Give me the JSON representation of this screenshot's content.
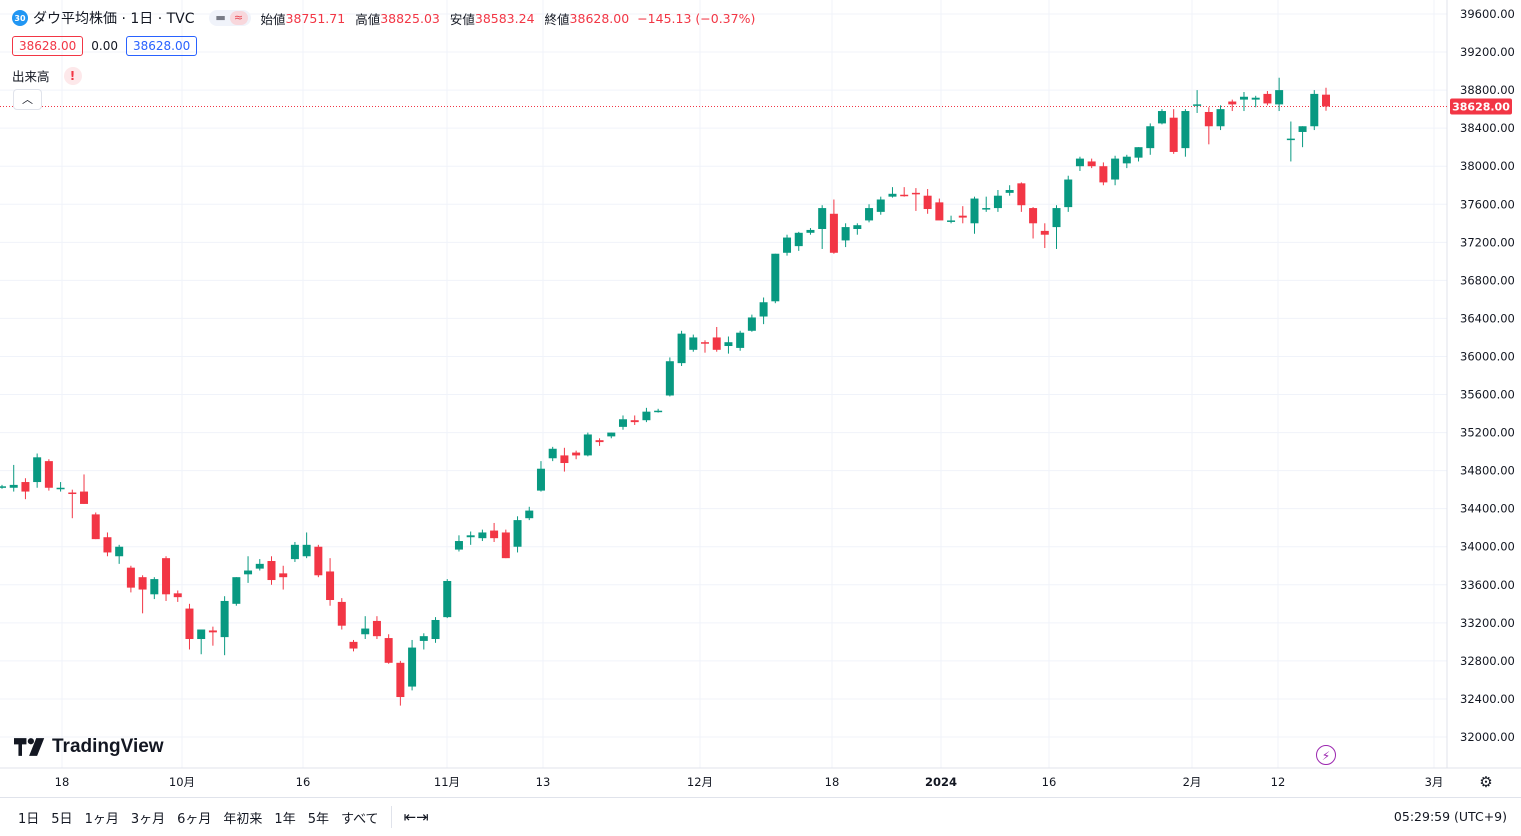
{
  "header": {
    "badge": "30",
    "title": "ダウ平均株価 · 1日 · TVC",
    "ohlc": [
      {
        "label": "始値",
        "value": "38751.71"
      },
      {
        "label": "高値",
        "value": "38825.03"
      },
      {
        "label": "安値",
        "value": "38583.24"
      },
      {
        "label": "終値",
        "value": "38628.00"
      }
    ],
    "change": "−145.13 (−0.37%)"
  },
  "quote": {
    "sell": "38628.00",
    "spread": "0.00",
    "buy": "38628.00"
  },
  "volume": {
    "label": "出来高",
    "warning": "!"
  },
  "collapse_icon": "chevron-up-icon",
  "logo_text": "TradingView",
  "price_axis": {
    "labels": [
      "39600.00",
      "39200.00",
      "38800.00",
      "38400.00",
      "38000.00",
      "37600.00",
      "37200.00",
      "36800.00",
      "36400.00",
      "36000.00",
      "35600.00",
      "35200.00",
      "34800.00",
      "34400.00",
      "34000.00",
      "33600.00",
      "33200.00",
      "32800.00",
      "32400.00",
      "32000.00"
    ],
    "current_price": "38628.00"
  },
  "time_axis": {
    "labels": [
      "18",
      "10月",
      "16",
      "11月",
      "13",
      "12月",
      "18",
      "2024",
      "16",
      "2月",
      "12",
      "3月"
    ]
  },
  "colors": {
    "up": "#089981",
    "down": "#f23645",
    "grid": "#f0f3fa",
    "current": "#f23645"
  },
  "bottom_bar": {
    "ranges": [
      "1日",
      "5日",
      "1ヶ月",
      "3ヶ月",
      "6ヶ月",
      "年初来",
      "1年",
      "5年",
      "すべて"
    ],
    "clock": "05:29:59 (UTC+9)"
  },
  "chart_data": {
    "type": "candlestick",
    "ylim": [
      31800,
      39700
    ],
    "current": 38628,
    "candles": [
      {
        "o": 34630,
        "h": 34650,
        "l": 34610,
        "c": 34635
      },
      {
        "o": 34620,
        "h": 34860,
        "l": 34580,
        "c": 34650
      },
      {
        "o": 34680,
        "h": 34720,
        "l": 34500,
        "c": 34580
      },
      {
        "o": 34680,
        "h": 34980,
        "l": 34620,
        "c": 34940
      },
      {
        "o": 34900,
        "h": 34920,
        "l": 34590,
        "c": 34620
      },
      {
        "o": 34620,
        "h": 34680,
        "l": 34580,
        "c": 34620
      },
      {
        "o": 34570,
        "h": 34600,
        "l": 34300,
        "c": 34560
      },
      {
        "o": 34580,
        "h": 34760,
        "l": 34450,
        "c": 34450
      },
      {
        "o": 34340,
        "h": 34360,
        "l": 34080,
        "c": 34080
      },
      {
        "o": 34100,
        "h": 34150,
        "l": 33900,
        "c": 33940
      },
      {
        "o": 33900,
        "h": 34020,
        "l": 33820,
        "c": 34000
      },
      {
        "o": 33780,
        "h": 33800,
        "l": 33520,
        "c": 33570
      },
      {
        "o": 33680,
        "h": 33700,
        "l": 33300,
        "c": 33550
      },
      {
        "o": 33500,
        "h": 33680,
        "l": 33450,
        "c": 33660
      },
      {
        "o": 33880,
        "h": 33900,
        "l": 33430,
        "c": 33500
      },
      {
        "o": 33510,
        "h": 33540,
        "l": 33420,
        "c": 33470
      },
      {
        "o": 33350,
        "h": 33400,
        "l": 32920,
        "c": 33030
      },
      {
        "o": 33030,
        "h": 33130,
        "l": 32870,
        "c": 33130
      },
      {
        "o": 33120,
        "h": 33160,
        "l": 32960,
        "c": 33100
      },
      {
        "o": 33050,
        "h": 33480,
        "l": 32860,
        "c": 33430
      },
      {
        "o": 33400,
        "h": 33680,
        "l": 33380,
        "c": 33680
      },
      {
        "o": 33710,
        "h": 33900,
        "l": 33620,
        "c": 33750
      },
      {
        "o": 33770,
        "h": 33870,
        "l": 33750,
        "c": 33820
      },
      {
        "o": 33850,
        "h": 33900,
        "l": 33600,
        "c": 33650
      },
      {
        "o": 33720,
        "h": 33800,
        "l": 33550,
        "c": 33680
      },
      {
        "o": 33870,
        "h": 34050,
        "l": 33840,
        "c": 34020
      },
      {
        "o": 33900,
        "h": 34150,
        "l": 33880,
        "c": 34020
      },
      {
        "o": 34000,
        "h": 34020,
        "l": 33680,
        "c": 33700
      },
      {
        "o": 33740,
        "h": 33880,
        "l": 33380,
        "c": 33440
      },
      {
        "o": 33420,
        "h": 33460,
        "l": 33130,
        "c": 33170
      },
      {
        "o": 33000,
        "h": 33020,
        "l": 32900,
        "c": 32930
      },
      {
        "o": 33080,
        "h": 33270,
        "l": 33030,
        "c": 33140
      },
      {
        "o": 33220,
        "h": 33270,
        "l": 33030,
        "c": 33060
      },
      {
        "o": 33040,
        "h": 33080,
        "l": 32770,
        "c": 32780
      },
      {
        "o": 32780,
        "h": 32800,
        "l": 32330,
        "c": 32420
      },
      {
        "o": 32530,
        "h": 33020,
        "l": 32490,
        "c": 32940
      },
      {
        "o": 33010,
        "h": 33090,
        "l": 32920,
        "c": 33060
      },
      {
        "o": 33030,
        "h": 33260,
        "l": 32990,
        "c": 33230
      },
      {
        "o": 33260,
        "h": 33660,
        "l": 33250,
        "c": 33640
      },
      {
        "o": 33970,
        "h": 34120,
        "l": 33950,
        "c": 34060
      },
      {
        "o": 34100,
        "h": 34160,
        "l": 34020,
        "c": 34120
      },
      {
        "o": 34090,
        "h": 34180,
        "l": 34060,
        "c": 34150
      },
      {
        "o": 34170,
        "h": 34250,
        "l": 34050,
        "c": 34090
      },
      {
        "o": 34150,
        "h": 34180,
        "l": 33880,
        "c": 33880
      },
      {
        "o": 34000,
        "h": 34320,
        "l": 33940,
        "c": 34280
      },
      {
        "o": 34300,
        "h": 34420,
        "l": 34280,
        "c": 34380
      },
      {
        "o": 34590,
        "h": 34900,
        "l": 34580,
        "c": 34820
      },
      {
        "o": 34930,
        "h": 35050,
        "l": 34900,
        "c": 35030
      },
      {
        "o": 34960,
        "h": 35040,
        "l": 34790,
        "c": 34880
      },
      {
        "o": 34990,
        "h": 35010,
        "l": 34920,
        "c": 34960
      },
      {
        "o": 34960,
        "h": 35200,
        "l": 34950,
        "c": 35180
      },
      {
        "o": 35120,
        "h": 35140,
        "l": 35060,
        "c": 35100
      },
      {
        "o": 35160,
        "h": 35200,
        "l": 35140,
        "c": 35200
      },
      {
        "o": 35260,
        "h": 35380,
        "l": 35230,
        "c": 35340
      },
      {
        "o": 35330,
        "h": 35380,
        "l": 35280,
        "c": 35310
      },
      {
        "o": 35330,
        "h": 35460,
        "l": 35310,
        "c": 35420
      },
      {
        "o": 35430,
        "h": 35450,
        "l": 35410,
        "c": 35430
      },
      {
        "o": 35590,
        "h": 35990,
        "l": 35580,
        "c": 35950
      },
      {
        "o": 35930,
        "h": 36270,
        "l": 35900,
        "c": 36240
      },
      {
        "o": 36070,
        "h": 36230,
        "l": 36050,
        "c": 36200
      },
      {
        "o": 36150,
        "h": 36170,
        "l": 36040,
        "c": 36140
      },
      {
        "o": 36200,
        "h": 36310,
        "l": 36050,
        "c": 36070
      },
      {
        "o": 36110,
        "h": 36210,
        "l": 36030,
        "c": 36150
      },
      {
        "o": 36090,
        "h": 36270,
        "l": 36060,
        "c": 36250
      },
      {
        "o": 36270,
        "h": 36440,
        "l": 36260,
        "c": 36410
      },
      {
        "o": 36420,
        "h": 36620,
        "l": 36340,
        "c": 36570
      },
      {
        "o": 36580,
        "h": 37080,
        "l": 36560,
        "c": 37080
      },
      {
        "o": 37090,
        "h": 37280,
        "l": 37060,
        "c": 37250
      },
      {
        "o": 37160,
        "h": 37310,
        "l": 37110,
        "c": 37300
      },
      {
        "o": 37300,
        "h": 37350,
        "l": 37280,
        "c": 37330
      },
      {
        "o": 37340,
        "h": 37590,
        "l": 37130,
        "c": 37560
      },
      {
        "o": 37500,
        "h": 37650,
        "l": 37080,
        "c": 37090
      },
      {
        "o": 37220,
        "h": 37400,
        "l": 37150,
        "c": 37360
      },
      {
        "o": 37340,
        "h": 37400,
        "l": 37280,
        "c": 37380
      },
      {
        "o": 37430,
        "h": 37600,
        "l": 37410,
        "c": 37560
      },
      {
        "o": 37520,
        "h": 37680,
        "l": 37490,
        "c": 37650
      },
      {
        "o": 37680,
        "h": 37780,
        "l": 37670,
        "c": 37710
      },
      {
        "o": 37700,
        "h": 37780,
        "l": 37680,
        "c": 37690
      },
      {
        "o": 37720,
        "h": 37770,
        "l": 37530,
        "c": 37710
      },
      {
        "o": 37690,
        "h": 37760,
        "l": 37500,
        "c": 37550
      },
      {
        "o": 37620,
        "h": 37660,
        "l": 37450,
        "c": 37430
      },
      {
        "o": 37430,
        "h": 37480,
        "l": 37400,
        "c": 37430
      },
      {
        "o": 37480,
        "h": 37580,
        "l": 37400,
        "c": 37460
      },
      {
        "o": 37400,
        "h": 37680,
        "l": 37290,
        "c": 37660
      },
      {
        "o": 37560,
        "h": 37680,
        "l": 37520,
        "c": 37560
      },
      {
        "o": 37560,
        "h": 37750,
        "l": 37520,
        "c": 37690
      },
      {
        "o": 37720,
        "h": 37800,
        "l": 37690,
        "c": 37750
      },
      {
        "o": 37820,
        "h": 37830,
        "l": 37520,
        "c": 37590
      },
      {
        "o": 37560,
        "h": 37570,
        "l": 37240,
        "c": 37400
      },
      {
        "o": 37320,
        "h": 37400,
        "l": 37140,
        "c": 37280
      },
      {
        "o": 37360,
        "h": 37590,
        "l": 37130,
        "c": 37560
      },
      {
        "o": 37570,
        "h": 37900,
        "l": 37520,
        "c": 37860
      },
      {
        "o": 38000,
        "h": 38100,
        "l": 37950,
        "c": 38080
      },
      {
        "o": 38050,
        "h": 38080,
        "l": 37980,
        "c": 38000
      },
      {
        "o": 38000,
        "h": 38040,
        "l": 37800,
        "c": 37830
      },
      {
        "o": 37860,
        "h": 38110,
        "l": 37800,
        "c": 38080
      },
      {
        "o": 38030,
        "h": 38120,
        "l": 37980,
        "c": 38100
      },
      {
        "o": 38090,
        "h": 38200,
        "l": 38050,
        "c": 38200
      },
      {
        "o": 38190,
        "h": 38450,
        "l": 38120,
        "c": 38420
      },
      {
        "o": 38450,
        "h": 38600,
        "l": 38440,
        "c": 38580
      },
      {
        "o": 38510,
        "h": 38600,
        "l": 38130,
        "c": 38150
      },
      {
        "o": 38190,
        "h": 38600,
        "l": 38100,
        "c": 38580
      },
      {
        "o": 38650,
        "h": 38800,
        "l": 38560,
        "c": 38650
      },
      {
        "o": 38570,
        "h": 38620,
        "l": 38230,
        "c": 38420
      },
      {
        "o": 38420,
        "h": 38640,
        "l": 38380,
        "c": 38600
      },
      {
        "o": 38680,
        "h": 38700,
        "l": 38580,
        "c": 38650
      },
      {
        "o": 38700,
        "h": 38780,
        "l": 38580,
        "c": 38730
      },
      {
        "o": 38700,
        "h": 38740,
        "l": 38620,
        "c": 38720
      },
      {
        "o": 38760,
        "h": 38790,
        "l": 38640,
        "c": 38660
      },
      {
        "o": 38650,
        "h": 38930,
        "l": 38580,
        "c": 38800
      },
      {
        "o": 38280,
        "h": 38470,
        "l": 38050,
        "c": 38290
      },
      {
        "o": 38360,
        "h": 38420,
        "l": 38200,
        "c": 38420
      },
      {
        "o": 38420,
        "h": 38800,
        "l": 38380,
        "c": 38760
      },
      {
        "o": 38752,
        "h": 38825,
        "l": 38583,
        "c": 38628
      }
    ]
  }
}
